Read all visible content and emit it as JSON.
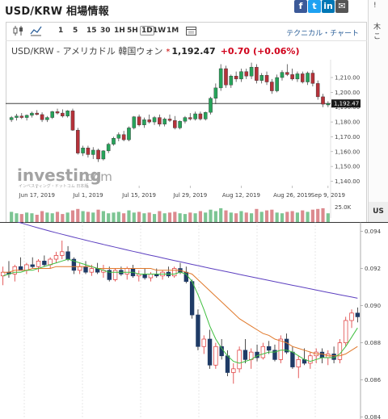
{
  "header": {
    "title": "USD/KRW 相場情報",
    "share": {
      "facebook": "f",
      "twitter": "t",
      "linkedin": "in",
      "mail": "✉",
      "extra": "!"
    }
  },
  "right_panel": {
    "glyph1": "木",
    "glyph2": "こ",
    "footer": "US"
  },
  "toolbar": {
    "timeframes": [
      "1",
      "5",
      "15",
      "30",
      "1H",
      "5H",
      "1D",
      "1W",
      "1M"
    ],
    "active_timeframe": "1D",
    "technical_label": "テクニカル・チャート"
  },
  "instrument": {
    "name": "USD/KRW - アメリカドル 韓国ウォン",
    "star": "*",
    "price": "1,192.47",
    "change": "+0.70",
    "change_pct": "(+0.06%)"
  },
  "colors": {
    "up": "#26a35a",
    "down": "#b5323a",
    "ma_short": "#3fbf3f",
    "ma_mid": "#e0782a",
    "ma_long": "#5c3fc0",
    "last_price_bg": "#1a1a1a"
  },
  "watermark": {
    "brand": "investing",
    "suffix": ".com",
    "tagline": "インベスティング・ドットコム 日本版"
  },
  "chart_data": [
    {
      "type": "candlestick",
      "timeframe": "1D",
      "x_tick_labels": [
        "Jun 17, 2019",
        "Jul 1, 2019",
        "Jul 15, 2019",
        "Jul 29, 2019",
        "Aug 12, 2019",
        "Aug 26, 2019",
        "Sep 9, 2019"
      ],
      "y_tick_labels": [
        "1,210.00",
        "1,200.00",
        "1,190.00",
        "1,180.00",
        "1,170.00",
        "1,160.00",
        "1,150.00",
        "1,140.00"
      ],
      "ylim": [
        1137,
        1222
      ],
      "last_price": "1,192.47",
      "volume_axis_label": "25.0K",
      "candles": [
        [
          1181.5,
          1184,
          1180,
          1183
        ],
        [
          1183,
          1185.5,
          1181,
          1184
        ],
        [
          1184,
          1186,
          1182,
          1183
        ],
        [
          1183,
          1185,
          1181,
          1184.5
        ],
        [
          1184.5,
          1187,
          1183,
          1186
        ],
        [
          1186,
          1188,
          1184.5,
          1185
        ],
        [
          1185,
          1186.5,
          1180,
          1181.5
        ],
        [
          1181.5,
          1184,
          1180,
          1183
        ],
        [
          1183,
          1187.5,
          1182,
          1187
        ],
        [
          1187,
          1189,
          1185,
          1186
        ],
        [
          1186,
          1188.5,
          1183,
          1184
        ],
        [
          1184,
          1188,
          1183,
          1187.5
        ],
        [
          1187.5,
          1189,
          1174,
          1174.5
        ],
        [
          1174.5,
          1176,
          1158,
          1159
        ],
        [
          1159,
          1164,
          1157,
          1162.5
        ],
        [
          1162.5,
          1164,
          1156,
          1158
        ],
        [
          1158,
          1163,
          1155,
          1161
        ],
        [
          1161,
          1162,
          1153,
          1155
        ],
        [
          1155,
          1161,
          1154,
          1160.5
        ],
        [
          1160.5,
          1166,
          1159,
          1165
        ],
        [
          1165,
          1170,
          1164,
          1169
        ],
        [
          1169,
          1173,
          1167,
          1171.5
        ],
        [
          1171.5,
          1174,
          1167,
          1168
        ],
        [
          1168,
          1177,
          1167,
          1176
        ],
        [
          1176,
          1184,
          1175,
          1183.5
        ],
        [
          1183.5,
          1185,
          1177,
          1178
        ],
        [
          1178,
          1183,
          1176,
          1181.5
        ],
        [
          1181.5,
          1185,
          1179,
          1180
        ],
        [
          1180,
          1184,
          1178,
          1183
        ],
        [
          1183,
          1185,
          1177,
          1178.5
        ],
        [
          1178.5,
          1183,
          1177,
          1182
        ],
        [
          1182,
          1185,
          1180,
          1181
        ],
        [
          1181,
          1184,
          1175,
          1176
        ],
        [
          1176,
          1181,
          1175,
          1180.5
        ],
        [
          1180.5,
          1184,
          1179,
          1183
        ],
        [
          1183,
          1186,
          1181,
          1182
        ],
        [
          1182,
          1187,
          1181,
          1185.5
        ],
        [
          1185.5,
          1187,
          1181,
          1182
        ],
        [
          1182,
          1187,
          1181,
          1186.5
        ],
        [
          1186.5,
          1197,
          1185,
          1196
        ],
        [
          1196,
          1206,
          1192,
          1203
        ],
        [
          1203,
          1219,
          1201,
          1216
        ],
        [
          1216,
          1218,
          1203,
          1205
        ],
        [
          1205,
          1212,
          1203,
          1211
        ],
        [
          1211,
          1214,
          1207,
          1209
        ],
        [
          1209,
          1216,
          1207,
          1214
        ],
        [
          1214,
          1216,
          1209,
          1211
        ],
        [
          1211,
          1220,
          1209,
          1217
        ],
        [
          1217,
          1219,
          1206,
          1208
        ],
        [
          1208,
          1213,
          1206,
          1211.5
        ],
        [
          1211.5,
          1214,
          1205,
          1207
        ],
        [
          1207,
          1209,
          1199,
          1201
        ],
        [
          1201,
          1212,
          1200,
          1210
        ],
        [
          1210,
          1215,
          1208,
          1213.5
        ],
        [
          1213.5,
          1219,
          1211,
          1212
        ],
        [
          1212,
          1216,
          1208,
          1209
        ],
        [
          1209,
          1214,
          1207,
          1212.5
        ],
        [
          1212.5,
          1214,
          1206,
          1207
        ],
        [
          1207,
          1214,
          1205,
          1213
        ],
        [
          1213,
          1215,
          1204,
          1206
        ],
        [
          1206,
          1208,
          1195,
          1197
        ],
        [
          1197,
          1199,
          1190,
          1192
        ],
        [
          1191.5,
          1194,
          1190,
          1192.47
        ]
      ],
      "volume": [
        14,
        12,
        11,
        13,
        12,
        10,
        15,
        13,
        12,
        14,
        11,
        13,
        16,
        18,
        15,
        14,
        13,
        17,
        15,
        12,
        13,
        14,
        12,
        16,
        13,
        14,
        12,
        13,
        11,
        15,
        12,
        13,
        14,
        12,
        11,
        13,
        12,
        15,
        13,
        17,
        15,
        19,
        16,
        13,
        12,
        15,
        13,
        12,
        18,
        14,
        16,
        17,
        13,
        12,
        14,
        15,
        13,
        16,
        14,
        17,
        18,
        19,
        12
      ]
    },
    {
      "type": "candlestick",
      "y_tick_labels": [
        "0.094",
        "0.092",
        "0.090",
        "0.088",
        "0.086",
        "0.084"
      ],
      "ylim": [
        0.0839,
        0.0945
      ],
      "candles": [
        [
          0.0916,
          0.0921,
          0.0911,
          0.0918
        ],
        [
          0.0918,
          0.0924,
          0.0915,
          0.0917
        ],
        [
          0.0917,
          0.0922,
          0.0913,
          0.0921
        ],
        [
          0.0921,
          0.0926,
          0.0919,
          0.0919
        ],
        [
          0.0919,
          0.0923,
          0.0917,
          0.0922
        ],
        [
          0.0922,
          0.0926,
          0.092,
          0.0921
        ],
        [
          0.0921,
          0.0925,
          0.0918,
          0.0924
        ],
        [
          0.0924,
          0.0927,
          0.0921,
          0.0922
        ],
        [
          0.0922,
          0.0926,
          0.092,
          0.0925
        ],
        [
          0.0925,
          0.0929,
          0.0923,
          0.0927
        ],
        [
          0.0927,
          0.0935,
          0.0925,
          0.0929
        ],
        [
          0.0929,
          0.0932,
          0.0924,
          0.0925
        ],
        [
          0.0925,
          0.0926,
          0.0917,
          0.0919
        ],
        [
          0.0919,
          0.0923,
          0.0917,
          0.0921
        ],
        [
          0.0921,
          0.0924,
          0.0917,
          0.0918
        ],
        [
          0.0918,
          0.0922,
          0.0916,
          0.092
        ],
        [
          0.092,
          0.0923,
          0.0917,
          0.0918
        ],
        [
          0.0918,
          0.0922,
          0.0915,
          0.0919
        ],
        [
          0.0919,
          0.0921,
          0.0913,
          0.0914
        ],
        [
          0.0914,
          0.092,
          0.0913,
          0.0919
        ],
        [
          0.0919,
          0.0921,
          0.0916,
          0.0917
        ],
        [
          0.0917,
          0.0921,
          0.0914,
          0.092
        ],
        [
          0.092,
          0.0922,
          0.0915,
          0.0916
        ],
        [
          0.0916,
          0.0919,
          0.0913,
          0.0917
        ],
        [
          0.0917,
          0.092,
          0.0914,
          0.0915
        ],
        [
          0.0915,
          0.0918,
          0.0913,
          0.0917
        ],
        [
          0.0917,
          0.092,
          0.0915,
          0.0916
        ],
        [
          0.0916,
          0.0919,
          0.0914,
          0.0918
        ],
        [
          0.0918,
          0.0921,
          0.0915,
          0.0916
        ],
        [
          0.0916,
          0.0921,
          0.0915,
          0.092
        ],
        [
          0.092,
          0.0923,
          0.0917,
          0.0918
        ],
        [
          0.0918,
          0.0921,
          0.0912,
          0.0913
        ],
        [
          0.0913,
          0.0914,
          0.0893,
          0.0895
        ],
        [
          0.0895,
          0.0898,
          0.0876,
          0.0878
        ],
        [
          0.0878,
          0.0884,
          0.0874,
          0.0882
        ],
        [
          0.0882,
          0.0887,
          0.0866,
          0.0868
        ],
        [
          0.0868,
          0.088,
          0.0866,
          0.0878
        ],
        [
          0.0878,
          0.0882,
          0.0871,
          0.0873
        ],
        [
          0.0873,
          0.0876,
          0.0862,
          0.0864
        ],
        [
          0.0864,
          0.0869,
          0.0858,
          0.0866
        ],
        [
          0.0866,
          0.0878,
          0.0864,
          0.0876
        ],
        [
          0.0876,
          0.0882,
          0.0869,
          0.0871
        ],
        [
          0.0871,
          0.0877,
          0.0866,
          0.0875
        ],
        [
          0.0875,
          0.0879,
          0.087,
          0.0872
        ],
        [
          0.0872,
          0.088,
          0.0871,
          0.0878
        ],
        [
          0.0878,
          0.0881,
          0.0874,
          0.0876
        ],
        [
          0.0876,
          0.0879,
          0.087,
          0.0871
        ],
        [
          0.0871,
          0.0884,
          0.0869,
          0.0882
        ],
        [
          0.0882,
          0.0885,
          0.0874,
          0.0875
        ],
        [
          0.0875,
          0.0878,
          0.0866,
          0.0867
        ],
        [
          0.0867,
          0.0873,
          0.0861,
          0.0871
        ],
        [
          0.0871,
          0.0877,
          0.0868,
          0.0869
        ],
        [
          0.0869,
          0.0875,
          0.0866,
          0.0873
        ],
        [
          0.0873,
          0.0877,
          0.0869,
          0.0875
        ],
        [
          0.0875,
          0.0877,
          0.0869,
          0.0872
        ],
        [
          0.0872,
          0.0876,
          0.0868,
          0.0874
        ],
        [
          0.0874,
          0.0878,
          0.0869,
          0.0871
        ],
        [
          0.0871,
          0.0882,
          0.0869,
          0.088
        ],
        [
          0.088,
          0.0894,
          0.0878,
          0.0892
        ],
        [
          0.0892,
          0.0898,
          0.0888,
          0.0896
        ],
        [
          0.0896,
          0.0899,
          0.0891,
          0.0894
        ]
      ],
      "ma_short": [
        0.0916,
        0.0917,
        0.0918,
        0.0918,
        0.0919,
        0.0919,
        0.092,
        0.0921,
        0.0922,
        0.0923,
        0.0924,
        0.0925,
        0.0924,
        0.0923,
        0.0922,
        0.0921,
        0.092,
        0.0919,
        0.0918,
        0.0918,
        0.0918,
        0.0918,
        0.0918,
        0.0917,
        0.0917,
        0.0917,
        0.0917,
        0.0917,
        0.0917,
        0.0917,
        0.0918,
        0.0917,
        0.0913,
        0.0906,
        0.0898,
        0.0889,
        0.0882,
        0.0877,
        0.0873,
        0.087,
        0.0869,
        0.087,
        0.0871,
        0.0873,
        0.0874,
        0.0875,
        0.0875,
        0.0876,
        0.0876,
        0.0875,
        0.0873,
        0.0871,
        0.087,
        0.0871,
        0.0872,
        0.0872,
        0.0872,
        0.0874,
        0.0878,
        0.0883,
        0.0888
      ],
      "ma_mid": [
        0.0918,
        0.0918,
        0.0919,
        0.0919,
        0.0919,
        0.092,
        0.092,
        0.092,
        0.092,
        0.0921,
        0.0921,
        0.0921,
        0.0921,
        0.0921,
        0.0921,
        0.0921,
        0.092,
        0.092,
        0.092,
        0.092,
        0.092,
        0.092,
        0.092,
        0.092,
        0.092,
        0.092,
        0.0919,
        0.0919,
        0.0919,
        0.0919,
        0.0919,
        0.0918,
        0.0917,
        0.0914,
        0.0911,
        0.0908,
        0.0905,
        0.0902,
        0.0899,
        0.0896,
        0.0893,
        0.0891,
        0.0889,
        0.0887,
        0.0885,
        0.0884,
        0.0882,
        0.0881,
        0.088,
        0.0878,
        0.0877,
        0.0876,
        0.0875,
        0.0874,
        0.0874,
        0.0873,
        0.0873,
        0.0873,
        0.0874,
        0.0876,
        0.0878
      ],
      "ma_long": [
        0.0948,
        0.0946,
        0.0944,
        0.0942,
        0.094,
        0.0939,
        0.0938,
        0.0937,
        0.0936,
        0.0935,
        0.0934,
        0.0933,
        0.0932,
        0.0931,
        0.093,
        0.0929,
        0.0928,
        0.0927,
        0.0926,
        0.0925,
        0.0924,
        0.0924,
        0.0923,
        0.0922,
        0.0922,
        0.0921,
        0.092,
        0.092,
        0.0919,
        0.0918,
        0.0917,
        0.0916,
        0.0914,
        0.0912,
        0.091,
        0.0908,
        0.0906,
        0.0904,
        0.0903,
        0.0901,
        0.09,
        0.0898,
        0.0897,
        0.0896,
        0.0895,
        0.0894,
        0.0893,
        0.0892,
        0.0912,
        0.091,
        0.0909,
        0.0907,
        0.0906,
        0.0905,
        0.0904,
        0.0903,
        0.0902,
        0.0902,
        0.0901,
        0.0901,
        0.09
      ]
    }
  ]
}
